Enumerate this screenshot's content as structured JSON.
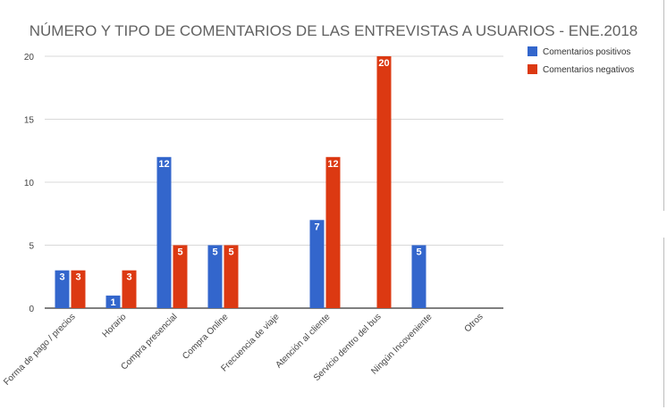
{
  "chart_data": {
    "type": "bar",
    "title": "NÚMERO Y TIPO DE COMENTARIOS DE LAS ENTREVISTAS A USUARIOS - ENE.2018",
    "xlabel": "",
    "ylabel": "",
    "ylim": [
      0,
      20
    ],
    "yticks": [
      "0",
      "5",
      "10",
      "15",
      "20"
    ],
    "grid": true,
    "legend_position": "top-right",
    "categories": [
      "Forma de pago / precios",
      "Horario",
      "Compra presencial",
      "Compra Online",
      "Frecuencia de viaje",
      "Atención al cliente",
      "Servicio dentro del bus",
      "Ningún Incoveniente",
      "Otros"
    ],
    "series": [
      {
        "name": "Comentarios positivos",
        "color": "#3366cc",
        "values": [
          3,
          1,
          12,
          5,
          0,
          7,
          0,
          5,
          0
        ]
      },
      {
        "name": "Comentarios negativos",
        "color": "#dc3912",
        "values": [
          3,
          3,
          5,
          5,
          0,
          12,
          20,
          0,
          0
        ]
      }
    ]
  }
}
